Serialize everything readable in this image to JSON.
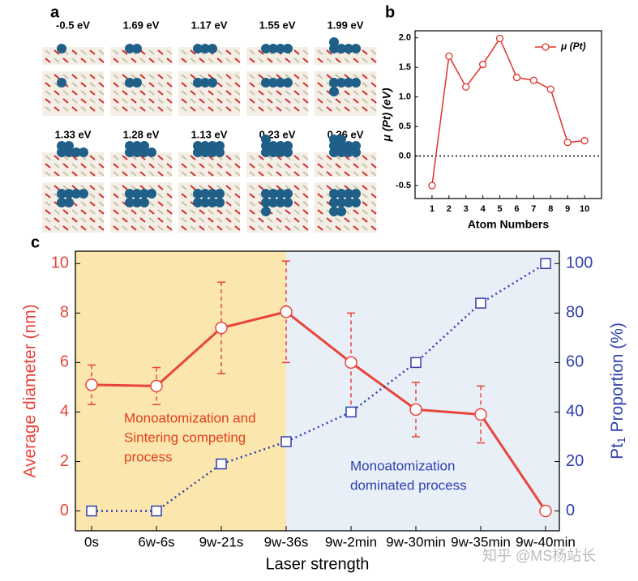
{
  "panel_a": {
    "label": "a",
    "energy_labels": [
      "-0.5 eV",
      "1.69 eV",
      "1.17 eV",
      "1.55 eV",
      "1.99 eV",
      "1.33 eV",
      "1.28 eV",
      "1.13 eV",
      "0.23 eV",
      "0.26 eV"
    ]
  },
  "chart_data": [
    {
      "type": "line",
      "panel_label": "b",
      "x": [
        1,
        2,
        3,
        4,
        5,
        6,
        7,
        8,
        9,
        10
      ],
      "series": [
        {
          "name": "μ (Pt)",
          "color": "#e0322a",
          "values": [
            -0.5,
            1.69,
            1.17,
            1.55,
            1.99,
            1.33,
            1.28,
            1.13,
            0.23,
            0.26
          ]
        }
      ],
      "xlabel": "Atom Numbers",
      "ylabel": "μ (Pt)  (eV)",
      "xlim": [
        0,
        11
      ],
      "ylim": [
        -0.72,
        2.12
      ],
      "xticks": [
        1,
        2,
        3,
        4,
        5,
        6,
        7,
        8,
        9,
        10
      ],
      "yticks": [
        -0.5,
        {
          "value": 0,
          "label": "0.0"
        },
        0.5,
        {
          "value": 1,
          "label": "1.0"
        },
        1.5,
        {
          "value": 2,
          "label": "2.0"
        }
      ],
      "reference_line": {
        "y": 0,
        "style": "dotted"
      },
      "legend": "upper right"
    },
    {
      "type": "line",
      "panel_label": "c",
      "categories": [
        "0s",
        "6w-6s",
        "9w-21s",
        "9w-36s",
        "9w-2min",
        "9w-30min",
        "9w-35min",
        "9w-40min"
      ],
      "series": [
        {
          "color": "#e8453c",
          "values": [
            5.1,
            5.05,
            7.4,
            8.05,
            6.0,
            4.1,
            3.9,
            0
          ],
          "errors": [
            0.8,
            0.75,
            1.85,
            2.05,
            2.0,
            1.1,
            1.15,
            null
          ],
          "line": "solid",
          "marker": "circle"
        },
        {
          "color": "#2f3fb0",
          "values": [
            0,
            0,
            19,
            28,
            40,
            60,
            84,
            100
          ],
          "axis": "y2",
          "line": "dotted",
          "marker": "square"
        }
      ],
      "xlabel": "Laser strength",
      "ylabel": "Average diameter (nm)",
      "y2label": {
        "text": "Pt",
        "subscript": "1",
        "suffix": " Proportion (%)"
      },
      "ylim": [
        -0.8,
        10.5
      ],
      "yticks": [
        0,
        2,
        4,
        6,
        8,
        10
      ],
      "y2lim": [
        -8,
        105
      ],
      "y2ticks": [
        0,
        20,
        40,
        60,
        80,
        100
      ],
      "annotations": [
        {
          "lines": [
            "Monoatomization and",
            "Sintering competing",
            "process"
          ],
          "color": "#e0401f"
        },
        {
          "lines": [
            "Monoatomization",
            "dominated process"
          ],
          "color": "#2f3fb0"
        }
      ],
      "regions": [
        {
          "to": 3,
          "color": "#fbe6ad"
        },
        {
          "from": 3,
          "color": "#e8eff7"
        }
      ]
    }
  ],
  "watermark": "知乎 @MS杨站长"
}
